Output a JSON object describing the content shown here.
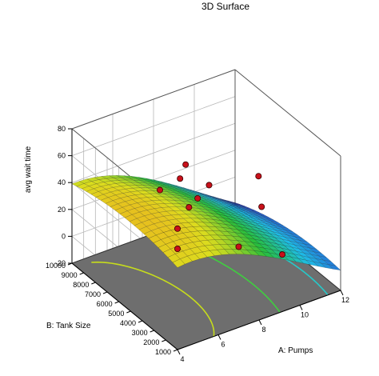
{
  "chart_data": {
    "type": "surface3d",
    "title": "3D Surface",
    "xlabel": "A: Pumps",
    "ylabel": "B: Tank Size",
    "zlabel": "avg wait time",
    "xlim": [
      4,
      12
    ],
    "ylim": [
      1000,
      10000
    ],
    "zlim": [
      -20,
      80
    ],
    "x_ticks": [
      "4",
      "6",
      "8",
      "10",
      "12"
    ],
    "y_ticks": [
      "1000",
      "2000",
      "3000",
      "4000",
      "5000",
      "6000",
      "7000",
      "8000",
      "9000",
      "10000"
    ],
    "z_ticks": [
      "-20",
      "0",
      "20",
      "40",
      "60",
      "80"
    ],
    "contour_levels": [
      {
        "level": 60,
        "color": "#f5b02a"
      },
      {
        "level": 40,
        "color": "#c6dc1c"
      },
      {
        "level": 20,
        "color": "#3fcf3f"
      },
      {
        "level": 0,
        "color": "#26c9c9"
      },
      {
        "level": -20,
        "color": "#2a6fe0"
      }
    ],
    "design_points": [
      {
        "x": 4,
        "y": 1000,
        "z": 70
      },
      {
        "x": 4,
        "y": 2500,
        "z": 88
      },
      {
        "x": 4,
        "y": 1000,
        "z": 55
      },
      {
        "x": 6,
        "y": 3500,
        "z": 57
      },
      {
        "x": 7,
        "y": 4500,
        "z": 51
      },
      {
        "x": 7,
        "y": 6000,
        "z": 55
      },
      {
        "x": 7,
        "y": 1000,
        "z": 40
      },
      {
        "x": 9,
        "y": 7000,
        "z": 32
      },
      {
        "x": 9,
        "y": 9000,
        "z": 33
      },
      {
        "x": 10,
        "y": 2500,
        "z": 7
      },
      {
        "x": 11,
        "y": 6000,
        "z": 12
      },
      {
        "x": 12,
        "y": 8000,
        "z": 15
      }
    ]
  }
}
